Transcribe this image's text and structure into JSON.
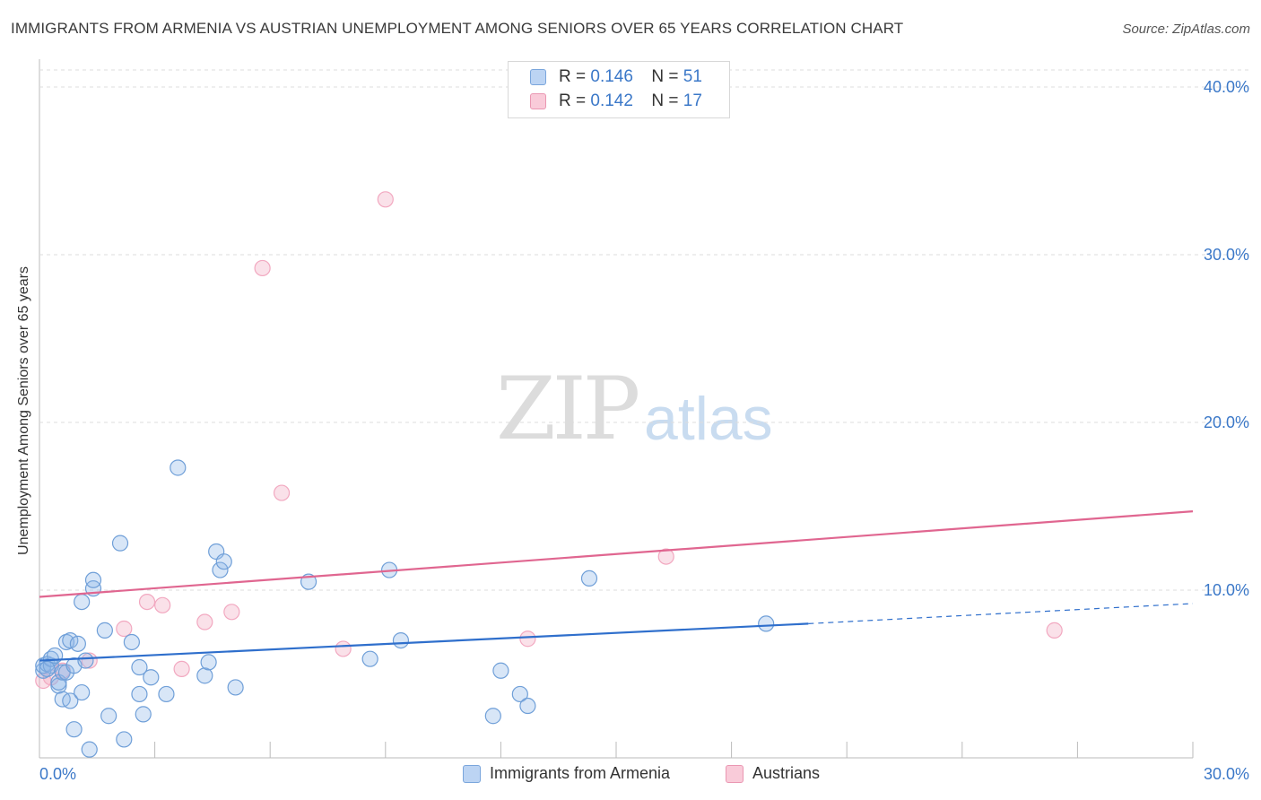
{
  "header": {
    "title": "IMMIGRANTS FROM ARMENIA VS AUSTRIAN UNEMPLOYMENT AMONG SENIORS OVER 65 YEARS CORRELATION CHART",
    "source": "Source: ZipAtlas.com"
  },
  "watermark": {
    "zip": "ZIP",
    "atlas": "atlas"
  },
  "legend_top": {
    "rows": [
      {
        "r_label": "R =",
        "r_value": "0.146",
        "n_label": "N =",
        "n_value": "51"
      },
      {
        "r_label": "R =",
        "r_value": "0.142",
        "n_label": "N =",
        "n_value": "17"
      }
    ]
  },
  "legend_bottom": {
    "series1": "Immigrants from Armenia",
    "series2": "Austrians"
  },
  "chart_data": {
    "type": "scatter",
    "title": "IMMIGRANTS FROM ARMENIA VS AUSTRIAN UNEMPLOYMENT AMONG SENIORS OVER 65 YEARS CORRELATION CHART",
    "xlabel": "",
    "ylabel": "Unemployment Among Seniors over 65 years",
    "xlim": [
      0,
      30
    ],
    "ylim": [
      0,
      40
    ],
    "x_tick_labels": [
      "0.0%",
      "30.0%"
    ],
    "y_ticks": [
      10,
      20,
      30,
      40
    ],
    "y_tick_labels": [
      "10.0%",
      "20.0%",
      "30.0%",
      "40.0%"
    ],
    "grid": "dashed horizontal",
    "colors": {
      "series1": "#8fb8e8",
      "series2": "#f2a8c0",
      "line1": "#2f6fcc",
      "line2": "#e06690",
      "tick": "#3b78c8"
    },
    "series": [
      {
        "name": "Immigrants from Armenia",
        "trend": {
          "x": [
            0,
            20
          ],
          "y": [
            5.8,
            8.0
          ],
          "dashed_to": [
            30,
            9.2
          ]
        },
        "points": [
          [
            0.1,
            5.2
          ],
          [
            0.1,
            5.5
          ],
          [
            0.2,
            5.6
          ],
          [
            0.3,
            5.5
          ],
          [
            0.3,
            5.9
          ],
          [
            0.4,
            6.1
          ],
          [
            0.5,
            4.3
          ],
          [
            0.5,
            4.5
          ],
          [
            0.6,
            3.5
          ],
          [
            0.6,
            5.1
          ],
          [
            0.7,
            5.1
          ],
          [
            0.7,
            6.9
          ],
          [
            0.8,
            3.4
          ],
          [
            0.8,
            7.0
          ],
          [
            0.9,
            1.7
          ],
          [
            0.9,
            5.5
          ],
          [
            1.0,
            6.8
          ],
          [
            1.1,
            3.9
          ],
          [
            1.1,
            9.3
          ],
          [
            1.2,
            5.8
          ],
          [
            1.3,
            0.5
          ],
          [
            1.4,
            10.1
          ],
          [
            1.4,
            10.6
          ],
          [
            1.7,
            7.6
          ],
          [
            1.8,
            2.5
          ],
          [
            2.1,
            12.8
          ],
          [
            2.2,
            1.1
          ],
          [
            2.4,
            6.9
          ],
          [
            2.6,
            3.8
          ],
          [
            2.6,
            5.4
          ],
          [
            2.7,
            2.6
          ],
          [
            2.9,
            4.8
          ],
          [
            3.3,
            3.8
          ],
          [
            3.6,
            17.3
          ],
          [
            4.3,
            4.9
          ],
          [
            4.4,
            5.7
          ],
          [
            4.6,
            12.3
          ],
          [
            4.7,
            11.2
          ],
          [
            4.8,
            11.7
          ],
          [
            5.1,
            4.2
          ],
          [
            7.0,
            10.5
          ],
          [
            8.6,
            5.9
          ],
          [
            9.1,
            11.2
          ],
          [
            9.4,
            7.0
          ],
          [
            11.8,
            2.5
          ],
          [
            12.0,
            5.2
          ],
          [
            12.5,
            3.8
          ],
          [
            12.7,
            3.1
          ],
          [
            14.3,
            10.7
          ],
          [
            18.9,
            8.0
          ],
          [
            0.2,
            5.3
          ]
        ]
      },
      {
        "name": "Austrians",
        "trend": {
          "x": [
            0,
            30
          ],
          "y": [
            9.6,
            14.7
          ]
        },
        "points": [
          [
            0.1,
            4.6
          ],
          [
            0.6,
            5.2
          ],
          [
            1.3,
            5.8
          ],
          [
            2.2,
            7.7
          ],
          [
            2.8,
            9.3
          ],
          [
            3.2,
            9.1
          ],
          [
            3.7,
            5.3
          ],
          [
            4.3,
            8.1
          ],
          [
            5.0,
            8.7
          ],
          [
            5.8,
            29.2
          ],
          [
            6.3,
            15.8
          ],
          [
            7.9,
            6.5
          ],
          [
            9.0,
            33.3
          ],
          [
            12.7,
            7.1
          ],
          [
            16.3,
            12.0
          ],
          [
            26.4,
            7.6
          ],
          [
            0.3,
            4.8
          ]
        ]
      }
    ]
  }
}
